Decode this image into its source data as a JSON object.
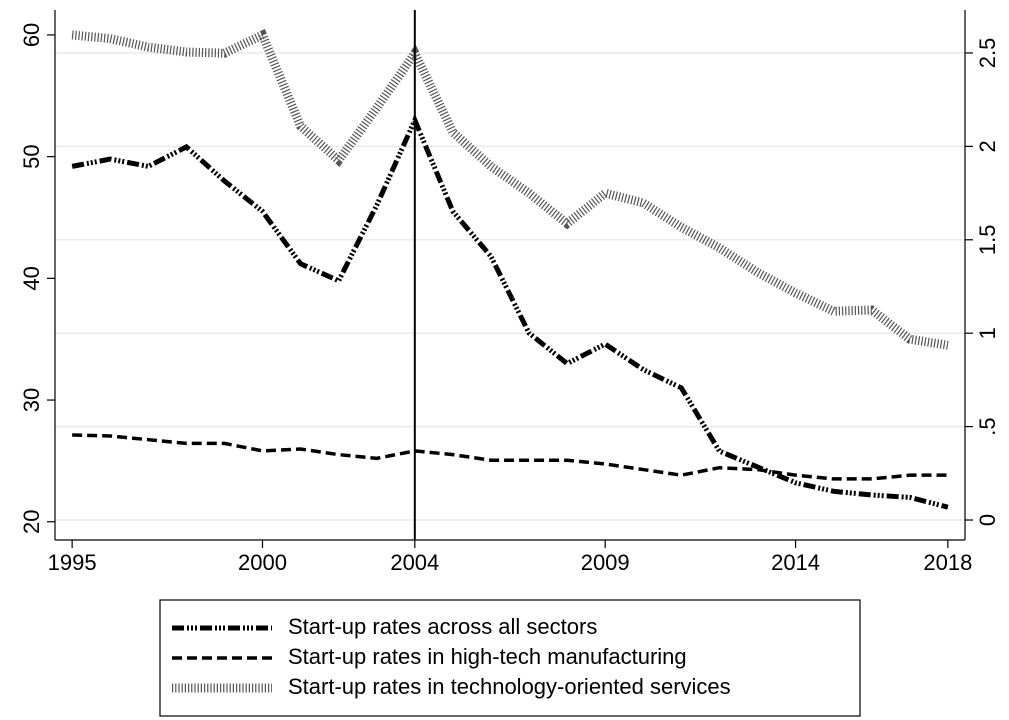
{
  "chart_data": {
    "type": "line",
    "x": [
      1995,
      1996,
      1997,
      1998,
      1999,
      2000,
      2001,
      2002,
      2003,
      2004,
      2005,
      2006,
      2007,
      2008,
      2009,
      2010,
      2011,
      2012,
      2013,
      2014,
      2015,
      2016,
      2017,
      2018
    ],
    "xlim": [
      1994.55,
      2018.45
    ],
    "xticks": [
      1995,
      2000,
      2004,
      2009,
      2014,
      2018
    ],
    "ylim": [
      18.5,
      62.05
    ],
    "yticks": [
      20,
      30,
      40,
      50,
      60
    ],
    "y2lim": [
      -0.107,
      2.73
    ],
    "y2ticks": [
      0,
      {
        "value": 0.5,
        "label": ".5"
      },
      1,
      1.5,
      2,
      2.5
    ],
    "vline": 2004,
    "grid": true,
    "series": [
      {
        "name": "Start-up rates across all sectors",
        "color": "#000000",
        "style": "dash-dot",
        "values": [
          49.2,
          49.8,
          49.2,
          50.8,
          48,
          45.5,
          41.2,
          39.8,
          46,
          53,
          45.5,
          41.8,
          35.5,
          33,
          34.6,
          32.5,
          31,
          25.8,
          24.5,
          23.2,
          22.5,
          22.2,
          22,
          21.2
        ]
      },
      {
        "name": "Start-up rates in high-tech manufacturing",
        "color": "#000000",
        "style": "dash",
        "axis": "y2",
        "values": [
          0.455,
          0.45,
          0.43,
          0.41,
          0.41,
          0.37,
          0.38,
          0.35,
          0.33,
          0.37,
          0.35,
          0.32,
          0.32,
          0.32,
          0.3,
          0.27,
          0.24,
          0.28,
          0.27,
          0.24,
          0.22,
          0.22,
          0.24,
          0.24
        ]
      },
      {
        "name": "Start-up rates in technology-oriented services",
        "color": "#555555",
        "style": "hatch",
        "values": [
          60,
          59.7,
          59,
          58.6,
          58.5,
          60,
          52.5,
          49.7,
          54,
          58.5,
          52,
          49.2,
          47,
          44.5,
          47,
          46.2,
          44.2,
          42.5,
          40.5,
          38.8,
          37.3,
          37.4,
          35,
          34.5
        ]
      }
    ]
  }
}
